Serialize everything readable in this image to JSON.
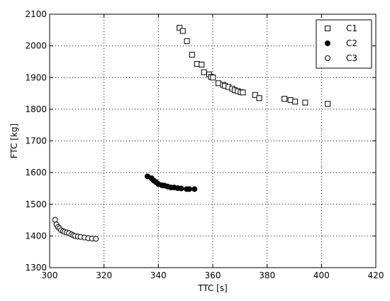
{
  "chart_data": {
    "type": "scatter",
    "xlabel": "TTC [s]",
    "ylabel": "FTC [kg]",
    "xlim": [
      300,
      420
    ],
    "ylim": [
      1300,
      2100
    ],
    "xticks": [
      300,
      320,
      340,
      360,
      380,
      400,
      420
    ],
    "yticks": [
      1300,
      1400,
      1500,
      1600,
      1700,
      1800,
      1900,
      2000,
      2100
    ],
    "grid": true,
    "legend_position": "top-right",
    "series": [
      {
        "name": "C1",
        "marker": "square-open",
        "points": [
          [
            347.8,
            2057
          ],
          [
            349.0,
            2047
          ],
          [
            350.5,
            2015
          ],
          [
            352.4,
            1972
          ],
          [
            354.2,
            1943
          ],
          [
            355.9,
            1941
          ],
          [
            356.8,
            1917
          ],
          [
            358.7,
            1910
          ],
          [
            359.4,
            1902
          ],
          [
            360.1,
            1900
          ],
          [
            362.1,
            1882
          ],
          [
            363.8,
            1877
          ],
          [
            364.5,
            1874
          ],
          [
            365.8,
            1870
          ],
          [
            367.2,
            1865
          ],
          [
            368.1,
            1860
          ],
          [
            369.2,
            1857
          ],
          [
            370.3,
            1854
          ],
          [
            371.1,
            1853
          ],
          [
            375.6,
            1845
          ],
          [
            377.1,
            1835
          ],
          [
            386.4,
            1833
          ],
          [
            388.6,
            1829
          ],
          [
            390.3,
            1824
          ],
          [
            394.0,
            1821
          ],
          [
            402.3,
            1817
          ]
        ]
      },
      {
        "name": "C2",
        "marker": "circle-filled",
        "points": [
          [
            336.0,
            1588
          ],
          [
            337.5,
            1582
          ],
          [
            338.3,
            1575
          ],
          [
            339.1,
            1570
          ],
          [
            340.0,
            1564
          ],
          [
            341.3,
            1560
          ],
          [
            342.2,
            1559
          ],
          [
            343.4,
            1556
          ],
          [
            344.6,
            1553
          ],
          [
            345.8,
            1553
          ],
          [
            347.1,
            1551
          ],
          [
            348.4,
            1550
          ],
          [
            350.4,
            1548
          ],
          [
            351.4,
            1548
          ],
          [
            353.3,
            1548
          ]
        ]
      },
      {
        "name": "C3",
        "marker": "circle-open",
        "points": [
          [
            302.0,
            1451
          ],
          [
            302.5,
            1436
          ],
          [
            303.1,
            1428
          ],
          [
            303.6,
            1424
          ],
          [
            304.2,
            1418
          ],
          [
            304.9,
            1415
          ],
          [
            305.5,
            1413
          ],
          [
            306.3,
            1411
          ],
          [
            307.1,
            1409
          ],
          [
            308.0,
            1405
          ],
          [
            308.7,
            1402
          ],
          [
            309.4,
            1400
          ],
          [
            310.4,
            1398
          ],
          [
            311.4,
            1397
          ],
          [
            312.8,
            1395
          ],
          [
            314.2,
            1393
          ],
          [
            315.6,
            1392
          ],
          [
            317.0,
            1391
          ]
        ]
      }
    ]
  }
}
